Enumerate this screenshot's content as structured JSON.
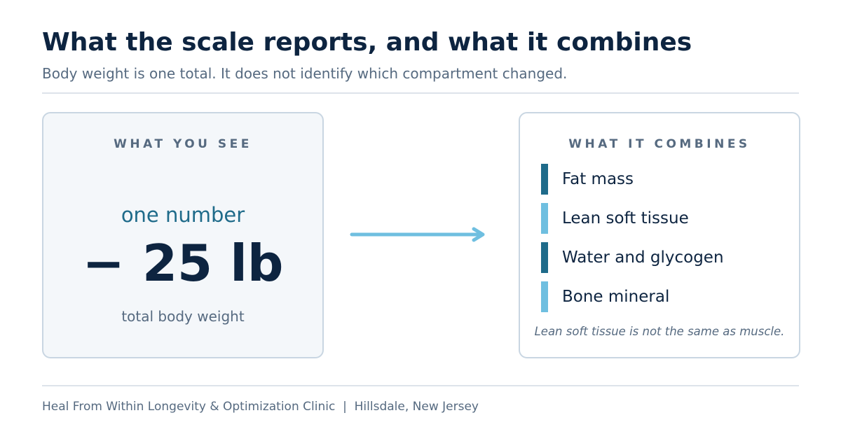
{
  "header": {
    "title": "What the scale reports, and what it combines",
    "subtitle": "Body weight is one total. It does not identify which compartment changed."
  },
  "left_card": {
    "heading": "WHAT YOU SEE",
    "caption": "one number",
    "value": "− 25 lb",
    "label": "total body weight"
  },
  "right_card": {
    "heading": "WHAT IT COMBINES",
    "items": [
      "Fat mass",
      "Lean soft tissue",
      "Water and glycogen",
      "Bone mineral"
    ],
    "note": "Lean soft tissue is not the same as muscle."
  },
  "footer": {
    "text": "Heal From Within Longevity & Optimization Clinic  |  Hillsdale, New Jersey"
  }
}
